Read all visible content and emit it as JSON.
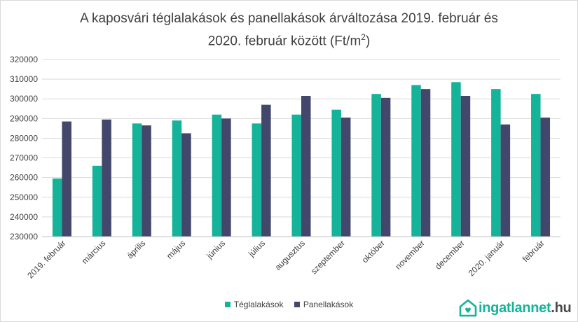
{
  "title_line1": "A kaposvári téglalakások és panellakások árváltozása 2019. február és",
  "title_line2_pre": "2020. február között (Ft/m",
  "title_sup": "2",
  "title_line2_post": ")",
  "brand": {
    "prefix": "ingatlannet",
    "suffix": ".hu",
    "icon": "house-heart-icon"
  },
  "colors": {
    "tegla": "#14b39a",
    "panel": "#43476b",
    "grid": "#d9d9d9",
    "axis": "#404040"
  },
  "chart_data": {
    "type": "bar",
    "categories": [
      "2019. február",
      "március",
      "április",
      "május",
      "június",
      "július",
      "augusztus",
      "szeptember",
      "október",
      "november",
      "december",
      "2020. január",
      "február"
    ],
    "series": [
      {
        "name": "Téglalakások",
        "values": [
          259500,
          266000,
          287500,
          289000,
          292000,
          287500,
          292000,
          294500,
          302500,
          307000,
          308500,
          305000,
          302500
        ]
      },
      {
        "name": "Panellakások",
        "values": [
          288500,
          289500,
          286500,
          282500,
          290000,
          297000,
          301500,
          290500,
          300500,
          305000,
          301500,
          287000,
          290500
        ]
      }
    ],
    "ylim": [
      230000,
      320000
    ],
    "yticks": [
      "230000",
      "240000",
      "250000",
      "260000",
      "270000",
      "280000",
      "290000",
      "300000",
      "310000",
      "320000"
    ],
    "grid": true,
    "legend": "bottom"
  }
}
